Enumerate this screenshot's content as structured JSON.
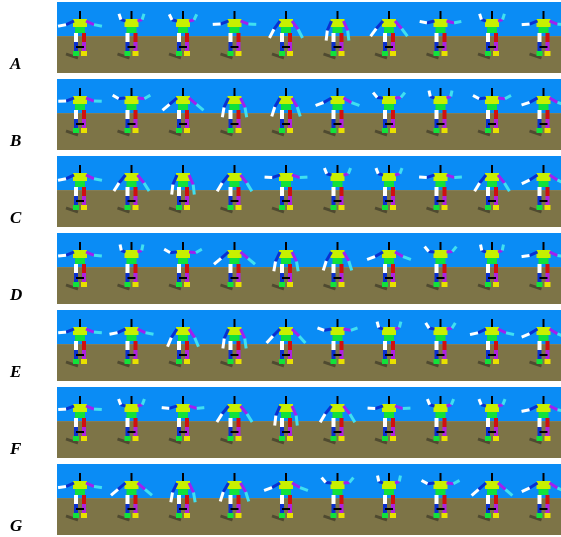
{
  "rows": [
    {
      "label": "A"
    },
    {
      "label": "B"
    },
    {
      "label": "C"
    },
    {
      "label": "D"
    },
    {
      "label": "E"
    },
    {
      "label": "F"
    },
    {
      "label": "G"
    }
  ]
}
